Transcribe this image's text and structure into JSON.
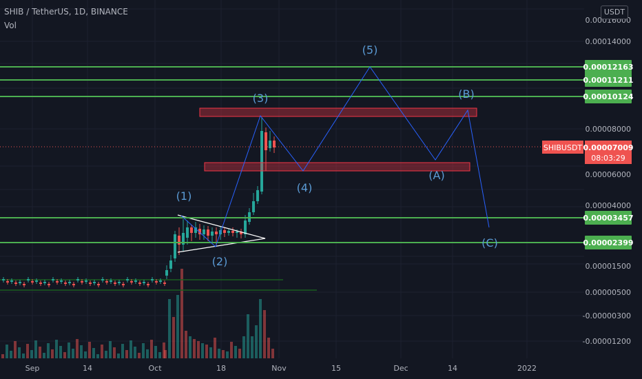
{
  "header": {
    "symbol_line": "SHIB / TetherUS, 1D, BINANCE",
    "volume_label": "Vol",
    "currency_button": "USDT"
  },
  "price_scale": {
    "labels": [
      "0.00016000",
      "0.00014000",
      "0.00008000",
      "0.00006000",
      "0.00004000",
      "0.00001500",
      "0.00000500",
      "-0.00000300",
      "-0.00001200"
    ]
  },
  "time_scale": {
    "labels": [
      "Sep",
      "14",
      "Oct",
      "18",
      "Nov",
      "15",
      "Dec",
      "14",
      "2022"
    ]
  },
  "current_price": {
    "symbol": "SHIBUSDT",
    "price": "0.00007009",
    "countdown": "08:03:29",
    "color": "#f23645"
  },
  "horizontal_levels": [
    {
      "price": "0.00012163"
    },
    {
      "price": "0.00011211"
    },
    {
      "price": "0.00010124"
    },
    {
      "price": "0.00003457"
    },
    {
      "price": "0.00002399"
    }
  ],
  "wave_labels": {
    "impulse": [
      "(1)",
      "(2)",
      "(3)",
      "(4)",
      "(5)"
    ],
    "corrective": [
      "(A)",
      "(B)",
      "(C)"
    ]
  },
  "colors": {
    "background": "#131722",
    "level_line": "#4caf50",
    "level_tag": "#4caf50",
    "zone_fill": "rgba(242,54,69,0.35)",
    "zone_border": "#f23645",
    "wave_line": "#2962ff",
    "wave_label": "#5b9bd5",
    "triangle": "#ffffff",
    "candle_up": "#26a69a",
    "candle_down": "#ef5350",
    "volume_up": "rgba(38,166,154,0.5)",
    "volume_down": "rgba(239,83,80,0.5)"
  },
  "chart_data": {
    "type": "candlestick",
    "symbol": "SHIB / TetherUS",
    "interval": "1D",
    "exchange": "BINANCE",
    "price_axis_ticks": [
      0.00016,
      0.00014,
      8e-05,
      6e-05,
      4e-05,
      1.5e-05,
      5e-06,
      -3e-06,
      -1.2e-05
    ],
    "time_axis_ticks": [
      "Sep",
      "14",
      "Oct",
      "18",
      "Nov",
      "15",
      "Dec",
      "14",
      "2022"
    ],
    "last_price": 7.009e-05,
    "levels": [
      0.00012163,
      0.00011211,
      0.00010124,
      3.457e-05,
      2.399e-05
    ]
  }
}
